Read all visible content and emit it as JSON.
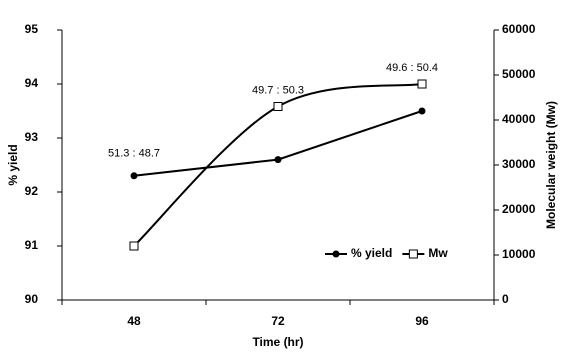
{
  "chart_data": {
    "type": "line",
    "x_label": "Time (hr)",
    "y_label": "% yield",
    "y2_label": "Molecular weight (Mw)",
    "categories": [
      "48",
      "72",
      "96"
    ],
    "series": [
      {
        "name": "% yield",
        "color": "#000000",
        "marker": "circle",
        "smooth": false,
        "values": [
          92.3,
          92.6,
          93.5
        ]
      },
      {
        "name": "Mw",
        "color": "#000000",
        "marker": "square",
        "smooth": true,
        "axis": "y2",
        "values": [
          12000,
          43000,
          48000
        ]
      }
    ],
    "annotations": [
      "51.3 : 48.7",
      "49.7 : 50.3",
      "49.6 : 50.4"
    ],
    "ylim": [
      90,
      95
    ],
    "yticks": [
      90,
      91,
      92,
      93,
      94,
      95
    ],
    "y2lim": [
      0,
      60000
    ],
    "y2ticks": [
      0,
      10000,
      20000,
      30000,
      40000,
      50000,
      60000
    ],
    "legend": "lower right"
  }
}
